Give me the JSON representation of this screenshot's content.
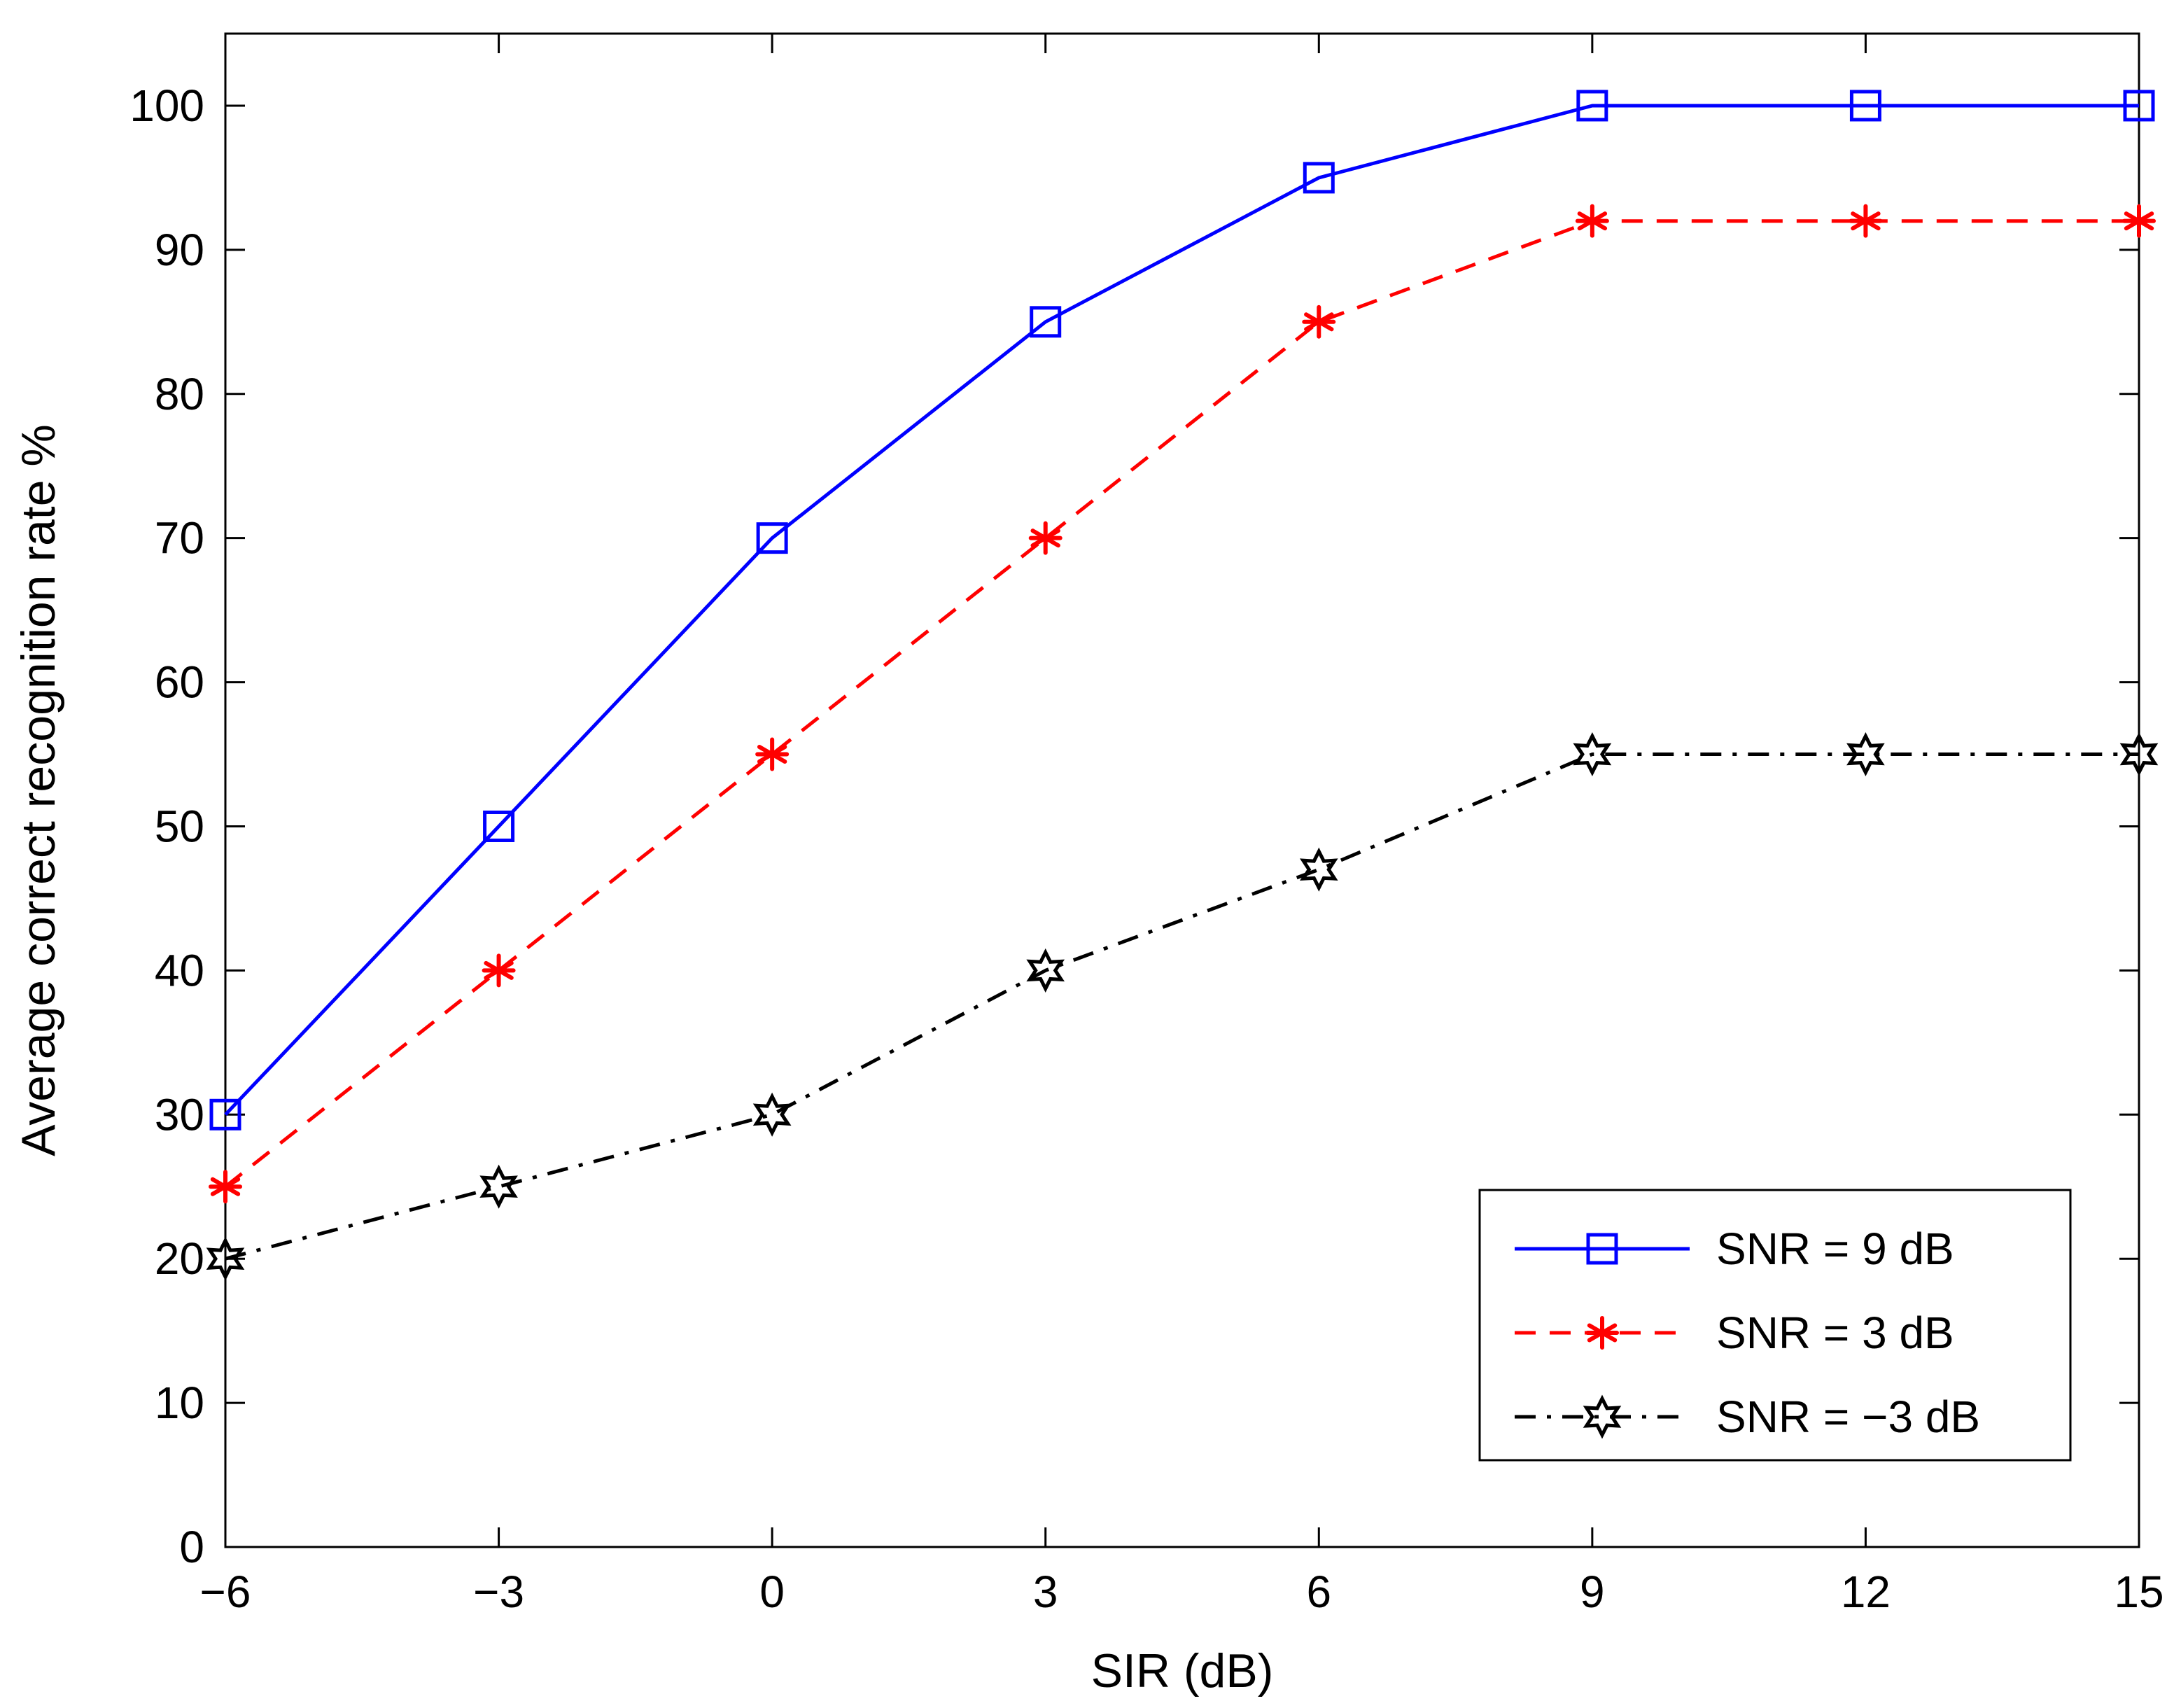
{
  "chart_data": {
    "type": "line",
    "title": "",
    "xlabel": "SIR (dB)",
    "ylabel": "Average correct recognition rate %",
    "x": [
      -6,
      -3,
      0,
      3,
      6,
      9,
      12,
      15
    ],
    "xlim": [
      -6,
      15
    ],
    "ylim": [
      0,
      105
    ],
    "xticks": [
      -6,
      -3,
      0,
      3,
      6,
      9,
      12,
      15
    ],
    "xtick_labels": [
      "−6",
      "−3",
      "0",
      "3",
      "6",
      "9",
      "12",
      "15"
    ],
    "yticks": [
      0,
      10,
      20,
      30,
      40,
      50,
      60,
      70,
      80,
      90,
      100
    ],
    "ytick_labels": [
      "0",
      "10",
      "20",
      "30",
      "40",
      "50",
      "60",
      "70",
      "80",
      "90",
      "100"
    ],
    "grid": false,
    "legend_position": "lower-right",
    "series": [
      {
        "name": "SNR = 9 dB",
        "color": "#0000ff",
        "line_style": "solid",
        "marker": "square",
        "values": [
          30,
          50,
          70,
          85,
          95,
          100,
          100,
          100
        ]
      },
      {
        "name": "SNR = 3 dB",
        "color": "#ff0000",
        "line_style": "dashed",
        "marker": "asterisk",
        "values": [
          25,
          40,
          55,
          70,
          85,
          92,
          92,
          92
        ]
      },
      {
        "name": "SNR = −3 dB",
        "color": "#000000",
        "line_style": "dashdot",
        "marker": "hexagram",
        "values": [
          20,
          25,
          30,
          40,
          47,
          55,
          55,
          55
        ]
      }
    ]
  }
}
